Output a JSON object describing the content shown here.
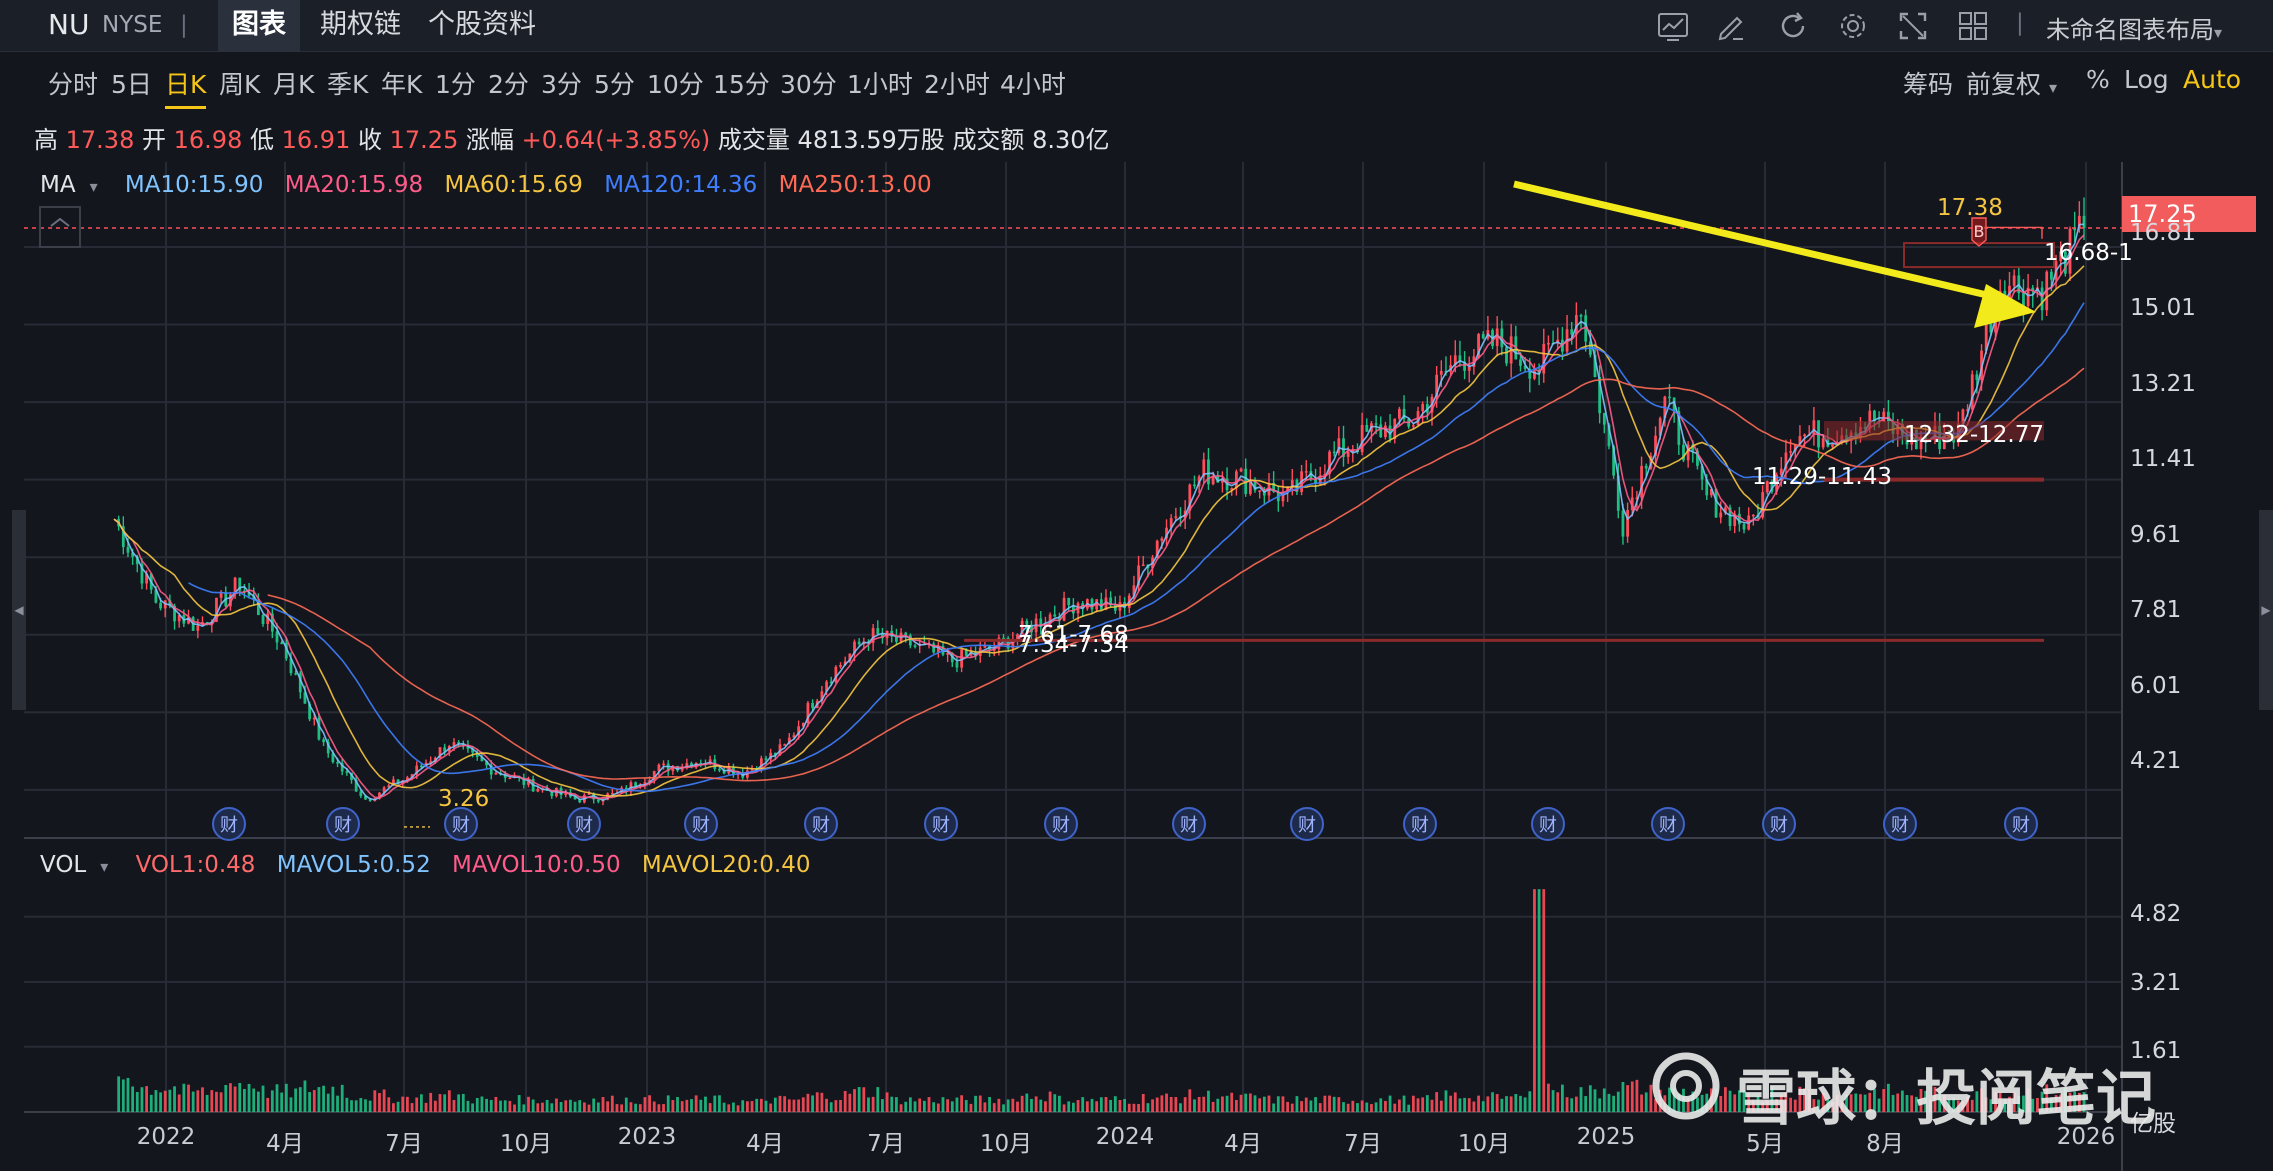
{
  "header": {
    "symbol": "NU",
    "exchange": "NYSE",
    "separator": "|",
    "tabs": [
      {
        "label": "图表",
        "active": true
      },
      {
        "label": "期权链",
        "active": false
      },
      {
        "label": "个股资料",
        "active": false
      }
    ],
    "icons": [
      "chart-icon",
      "pencil-icon",
      "refresh-icon",
      "gear-icon",
      "fullscreen-icon",
      "grid-layout-icon"
    ],
    "layout_name": "未命名图表布局",
    "layout_caret": "▾"
  },
  "periods": [
    {
      "label": "分时",
      "active": false
    },
    {
      "label": "5日",
      "active": false
    },
    {
      "label": "日K",
      "active": true
    },
    {
      "label": "周K",
      "active": false
    },
    {
      "label": "月K",
      "active": false
    },
    {
      "label": "季K",
      "active": false
    },
    {
      "label": "年K",
      "active": false
    },
    {
      "label": "1分",
      "active": false
    },
    {
      "label": "2分",
      "active": false
    },
    {
      "label": "3分",
      "active": false
    },
    {
      "label": "5分",
      "active": false
    },
    {
      "label": "10分",
      "active": false
    },
    {
      "label": "15分",
      "active": false
    },
    {
      "label": "30分",
      "active": false
    },
    {
      "label": "1小时",
      "active": false
    },
    {
      "label": "2小时",
      "active": false
    },
    {
      "label": "4小时",
      "active": false
    }
  ],
  "right_options": {
    "chips": "筹码",
    "adjust": "前复权",
    "adjust_caret": "▾",
    "percent": "%",
    "log": "Log",
    "auto": "Auto"
  },
  "quote": {
    "high_label": "高",
    "high": "17.38",
    "open_label": "开",
    "open": "16.98",
    "low_label": "低",
    "low": "16.91",
    "close_label": "收",
    "close": "17.25",
    "change_label": "涨幅",
    "change": "+0.64(+3.85%)",
    "volume_label": "成交量",
    "volume": "4813.59万股",
    "turnover_label": "成交额",
    "turnover": "8.30亿"
  },
  "ma_legend": {
    "name": "MA",
    "caret": "▾",
    "items": [
      {
        "label": "MA10:15.90",
        "color": "#7fc3ff"
      },
      {
        "label": "MA20:15.98",
        "color": "#ff5c8a"
      },
      {
        "label": "MA60:15.69",
        "color": "#f5c542"
      },
      {
        "label": "MA120:14.36",
        "color": "#3f7fff"
      },
      {
        "label": "MA250:13.00",
        "color": "#ff6a55"
      }
    ]
  },
  "vol_legend": {
    "name": "VOL",
    "caret": "▾",
    "items": [
      {
        "label": "VOL1:0.48",
        "color": "#ff6a6a"
      },
      {
        "label": "MAVOL5:0.52",
        "color": "#7fc3ff"
      },
      {
        "label": "MAVOL10:0.50",
        "color": "#ff5c8a"
      },
      {
        "label": "MAVOL20:0.40",
        "color": "#f5c542"
      }
    ]
  },
  "price_axis": [
    "16.81",
    "15.01",
    "13.21",
    "11.41",
    "9.61",
    "7.81",
    "6.01",
    "4.21"
  ],
  "current_price": "17.25",
  "vol_axis": [
    "4.82",
    "3.21",
    "1.61"
  ],
  "vol_unit": "亿股",
  "x_axis": [
    "2022",
    "4月",
    "7月",
    "10月",
    "2023",
    "4月",
    "7月",
    "10月",
    "2024",
    "4月",
    "7月",
    "10月",
    "2025",
    "5月",
    "8月",
    "2026"
  ],
  "annotations": {
    "low_mark": "3.26",
    "high_mark": "17.38",
    "buy_mark": "B",
    "range1": "7.61-7.68",
    "range2": "7.34-7.34",
    "range3": "11.29-11.43",
    "range4": "12.32-12.77",
    "range5": "16.68-1",
    "earnings_label": "财"
  },
  "watermark": "雪球：投阅笔记",
  "colors": {
    "up": "#ff4d5a",
    "down": "#1fbf84",
    "accent": "#f5c518",
    "grid": "#262b35",
    "background": "#13161d"
  },
  "chart_data": {
    "type": "candlestick",
    "title": "",
    "symbol": "NU",
    "xlabel": "",
    "ylabel": "",
    "x": [
      "2021-12",
      "2022-01",
      "2022-02",
      "2022-03",
      "2022-04",
      "2022-05",
      "2022-06",
      "2022-07",
      "2022-08",
      "2022-09",
      "2022-10",
      "2022-11",
      "2022-12",
      "2023-01",
      "2023-02",
      "2023-03",
      "2023-04",
      "2023-05",
      "2023-06",
      "2023-07",
      "2023-08",
      "2023-09",
      "2023-10",
      "2023-11",
      "2023-12",
      "2024-01",
      "2024-02",
      "2024-03",
      "2024-04",
      "2024-05",
      "2024-06",
      "2024-07",
      "2024-08",
      "2024-09",
      "2024-10",
      "2024-11",
      "2024-12",
      "2025-01",
      "2025-02",
      "2025-03",
      "2025-04",
      "2025-05",
      "2025-06",
      "2025-07",
      "2025-08",
      "2025-09",
      "2025-10",
      "2025-11"
    ],
    "close": [
      10.5,
      8.6,
      8.0,
      9.0,
      7.6,
      5.2,
      4.0,
      4.5,
      5.3,
      4.7,
      4.3,
      4.0,
      4.1,
      4.7,
      4.9,
      4.6,
      5.2,
      6.8,
      7.8,
      7.6,
      7.2,
      7.5,
      8.1,
      8.6,
      8.4,
      10.2,
      11.6,
      11.4,
      11.0,
      11.9,
      12.5,
      12.8,
      14.2,
      14.6,
      14.0,
      15.4,
      10.4,
      13.2,
      11.0,
      10.3,
      12.4,
      12.5,
      12.8,
      12.3,
      12.5,
      16.0,
      15.8,
      17.25
    ],
    "ma_last": {
      "MA10": 15.9,
      "MA20": 15.98,
      "MA60": 15.69,
      "MA120": 14.36,
      "MA250": 13.0
    },
    "volume_unit": "亿股",
    "volume": [
      0.9,
      0.6,
      0.5,
      0.7,
      0.5,
      0.6,
      0.4,
      0.35,
      0.4,
      0.3,
      0.3,
      0.3,
      0.3,
      0.3,
      0.3,
      0.25,
      0.3,
      0.4,
      0.5,
      0.3,
      0.3,
      0.3,
      0.4,
      0.3,
      0.3,
      0.35,
      0.4,
      0.35,
      0.3,
      0.3,
      0.3,
      0.3,
      0.4,
      0.35,
      5.5,
      0.5,
      0.6,
      0.5,
      0.45,
      0.4,
      0.5,
      0.4,
      0.5,
      0.45,
      0.4,
      0.5,
      0.5,
      0.48
    ],
    "y_axis_ticks": [
      16.81,
      15.01,
      13.21,
      11.41,
      9.61,
      7.81,
      6.01,
      4.21
    ],
    "ylim": [
      3.0,
      17.9
    ],
    "vol_axis_ticks": [
      4.82,
      3.21,
      1.61
    ],
    "vol_ylim": [
      0,
      5.8
    ],
    "grid": true,
    "legend_placement": "top-left"
  }
}
